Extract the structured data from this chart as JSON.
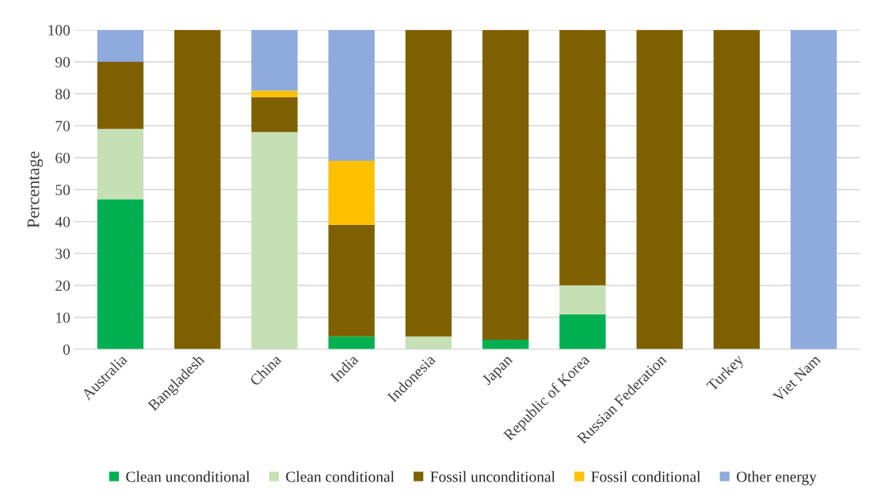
{
  "chart_data": {
    "type": "bar",
    "stacked": true,
    "ylabel": "Percentage",
    "categories": [
      "Australia",
      "Bangladesh",
      "China",
      "India",
      "Indonesia",
      "Japan",
      "Republic of Korea",
      "Russian Federation",
      "Turkey",
      "Viet Nam"
    ],
    "series": [
      {
        "name": "Clean unconditional",
        "color": "#00b050",
        "values": [
          47,
          null,
          null,
          4,
          null,
          3,
          11,
          null,
          null,
          null
        ]
      },
      {
        "name": "Clean conditional",
        "color": "#c5e0b4",
        "values": [
          22,
          null,
          68,
          null,
          4,
          null,
          9,
          null,
          null,
          null
        ]
      },
      {
        "name": "Fossil unconditional",
        "color": "#7f6000",
        "values": [
          21,
          100,
          11,
          35,
          96,
          97,
          80,
          100,
          100,
          null
        ]
      },
      {
        "name": "Fossil conditional",
        "color": "#ffc000",
        "values": [
          null,
          null,
          2,
          20,
          null,
          null,
          null,
          null,
          null,
          null
        ]
      },
      {
        "name": "Other energy",
        "color": "#8faadc",
        "values": [
          10,
          null,
          19,
          41,
          null,
          null,
          null,
          null,
          null,
          100
        ]
      }
    ],
    "ylim": [
      0,
      100
    ],
    "yticks": [
      0,
      10,
      20,
      30,
      40,
      50,
      60,
      70,
      80,
      90,
      100
    ],
    "grid": "y",
    "legend": "bottom"
  }
}
